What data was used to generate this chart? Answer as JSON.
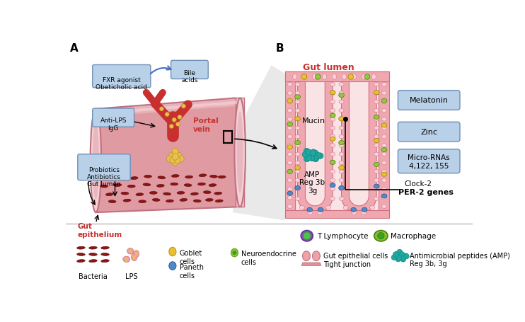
{
  "bg_color": "#ffffff",
  "panel_a_label": "A",
  "panel_b_label": "B",
  "gut_lumen_text": "Gut lumen",
  "gut_epithelium_text": "Gut\nepithelium",
  "portal_vein_text": "Portal\nvein",
  "fxr_box_text": "FXR agonist\nObeticholic acid",
  "bile_box_text": "Bile\nacids",
  "antilps_box_text": "Anti-LPS\nIgG",
  "probiotics_box_text": "Probiotics\nAntibiotics\nGut lumen",
  "melatonin_box_text": "Melatonin",
  "zinc_box_text": "Zinc",
  "microrna_box_text": "Micro-RNAs\n4,122, 155",
  "clock2_text": "Clock-2",
  "per2_text": "PER-2 genes",
  "mucin_text": "Mucin",
  "amp_text": "AMP\nReg 3b\n3g",
  "t_lymphocyte_text": "T Lymphocyte",
  "macrophage_text": "Macrophage",
  "legend_bacteria": "Bacteria",
  "legend_lps": "LPS",
  "legend_goblet": "Goblet\ncells",
  "legend_paneth": "Paneth\ncells",
  "legend_neuroendocrine": "Neuroendocrine\ncells",
  "legend_gut_epithelial": "Gut epithelial cells\nTight junction",
  "legend_amp": "Antimicrobial peptides (AMP)\nReg 3b, 3g",
  "tube_pink": "#e8a0a8",
  "tube_dark": "#c85060",
  "tube_light": "#f5d0d5",
  "tube_top": "#d88090",
  "box_bg": "#b8d0e8",
  "box_border": "#7090b8",
  "teal": "#20a8a0",
  "yellow": "#e8c030",
  "green_cell": "#70b830",
  "blue_cell": "#5088c8",
  "dark_red_bact": "#8b1515",
  "purple_cell": "#9050b0",
  "light_green": "#90c840"
}
